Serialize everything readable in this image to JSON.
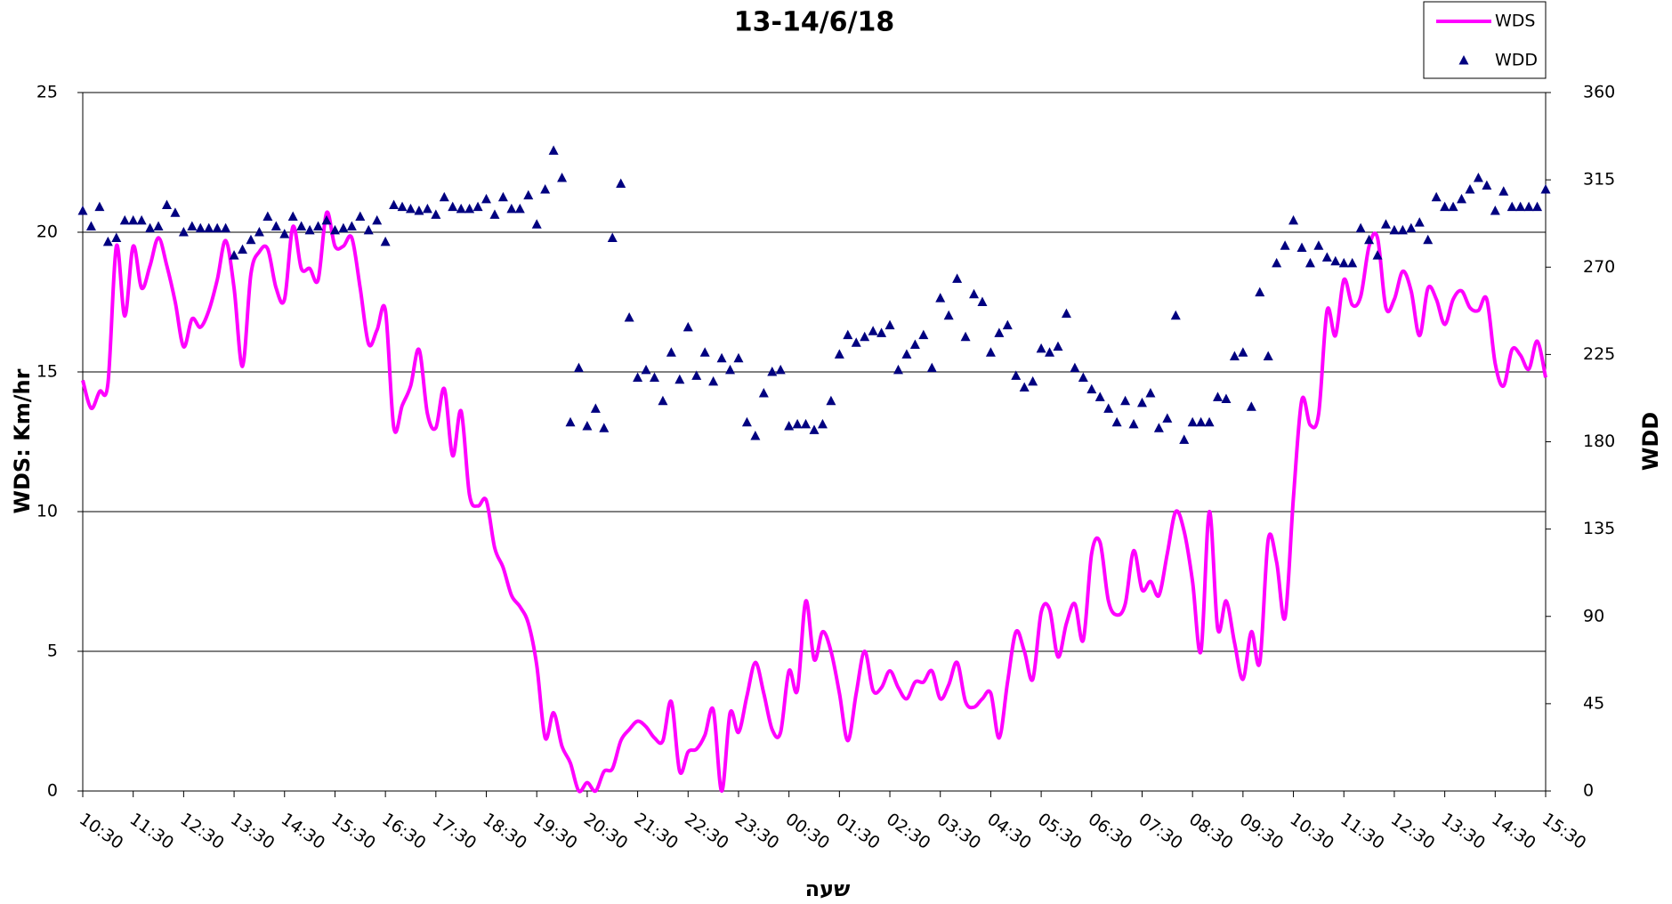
{
  "chart_data": {
    "type": "line",
    "title": "13-14/6/18",
    "x_label": "שעה",
    "y_label": "WDS: Km/hr",
    "y2_label": "WDD",
    "categories": [
      "10:30",
      null,
      null,
      null,
      null,
      null,
      "11:30",
      null,
      null,
      null,
      null,
      null,
      "12:30",
      null,
      null,
      null,
      null,
      null,
      "13:30",
      null,
      null,
      null,
      null,
      null,
      "14:30",
      null,
      null,
      null,
      null,
      null,
      "15:30",
      null,
      null,
      null,
      null,
      null,
      "16:30",
      null,
      null,
      null,
      null,
      null,
      "17:30",
      null,
      null,
      null,
      null,
      null,
      "18:30",
      null,
      null,
      null,
      null,
      null,
      "19:30",
      null,
      null,
      null,
      null,
      null,
      "20:30",
      null,
      null,
      null,
      null,
      null,
      "21:30",
      null,
      null,
      null,
      null,
      null,
      "22:30",
      null,
      null,
      null,
      null,
      null,
      "23:30",
      null,
      null,
      null,
      null,
      null,
      "00:30",
      null,
      null,
      null,
      null,
      null,
      "01:30",
      null,
      null,
      null,
      null,
      null,
      "02:30",
      null,
      null,
      null,
      null,
      null,
      "03:30",
      null,
      null,
      null,
      null,
      null,
      "04:30",
      null,
      null,
      null,
      null,
      null,
      "05:30",
      null,
      null,
      null,
      null,
      null,
      "06:30",
      null,
      null,
      null,
      null,
      null,
      "07:30",
      null,
      null,
      null,
      null,
      null,
      "08:30",
      null,
      null,
      null,
      null,
      null,
      "09:30",
      null,
      null,
      null,
      null,
      null,
      "10:30",
      null,
      null,
      null,
      null,
      null,
      "11:30",
      null,
      null,
      null,
      null,
      null,
      "12:30",
      null,
      null,
      null,
      null,
      null,
      "13:30",
      null,
      null,
      null,
      null,
      null,
      "14:30",
      null,
      null,
      null,
      null,
      null,
      "15:30"
    ],
    "series": [
      {
        "name": "WDS",
        "type": "line",
        "axis": "y",
        "color": "#ff00ff",
        "values": [
          14.7,
          13.7,
          14.3,
          14.6,
          19.5,
          17.0,
          19.5,
          18.0,
          18.8,
          19.8,
          18.8,
          17.5,
          15.9,
          16.9,
          16.6,
          17.2,
          18.3,
          19.7,
          18.0,
          15.2,
          18.5,
          19.3,
          19.4,
          18.0,
          17.6,
          20.2,
          18.7,
          18.7,
          18.3,
          20.7,
          19.5,
          19.5,
          19.8,
          18.0,
          16.0,
          16.5,
          17.2,
          13.0,
          13.8,
          14.5,
          15.8,
          13.5,
          13.0,
          14.4,
          12.0,
          13.6,
          10.6,
          10.2,
          10.4,
          8.7,
          8.0,
          7.0,
          6.6,
          6.0,
          4.5,
          1.9,
          2.8,
          1.6,
          1.0,
          0.0,
          0.3,
          0.0,
          0.7,
          0.8,
          1.8,
          2.2,
          2.5,
          2.3,
          1.9,
          1.8,
          3.2,
          0.7,
          1.4,
          1.5,
          2.0,
          2.9,
          0.0,
          2.8,
          2.1,
          3.4,
          4.6,
          3.5,
          2.2,
          2.1,
          4.3,
          3.6,
          6.8,
          4.7,
          5.7,
          5.0,
          3.5,
          1.8,
          3.5,
          5.0,
          3.6,
          3.7,
          4.3,
          3.7,
          3.3,
          3.9,
          3.9,
          4.3,
          3.3,
          3.8,
          4.6,
          3.2,
          3.0,
          3.3,
          3.5,
          1.9,
          3.9,
          5.7,
          5.0,
          4.0,
          6.4,
          6.5,
          4.8,
          6.0,
          6.7,
          5.4,
          8.5,
          8.9,
          6.8,
          6.3,
          6.7,
          8.6,
          7.2,
          7.5,
          7.0,
          8.5,
          10.0,
          9.3,
          7.5,
          5.0,
          10.0,
          5.8,
          6.8,
          5.3,
          4.0,
          5.7,
          4.6,
          9.0,
          8.2,
          6.2,
          10.5,
          14.0,
          13.1,
          13.5,
          17.2,
          16.3,
          18.3,
          17.4,
          17.7,
          19.5,
          19.8,
          17.3,
          17.6,
          18.6,
          17.9,
          16.3,
          18.0,
          17.6,
          16.7,
          17.6,
          17.9,
          17.3,
          17.2,
          17.6,
          15.3,
          14.5,
          15.8,
          15.6,
          15.1,
          16.1,
          14.8
        ]
      },
      {
        "name": "WDD",
        "type": "scatter",
        "axis": "y2",
        "color": "#000080",
        "values": [
          299,
          291,
          301,
          283,
          285,
          294,
          294,
          294,
          290,
          291,
          302,
          298,
          288,
          291,
          290,
          290,
          290,
          290,
          276,
          279,
          284,
          288,
          296,
          291,
          287,
          296,
          291,
          289,
          291,
          294,
          289,
          290,
          291,
          296,
          289,
          294,
          283,
          302,
          301,
          300,
          299,
          300,
          297,
          306,
          301,
          300,
          300,
          301,
          305,
          297,
          306,
          300,
          300,
          307,
          292,
          310,
          330,
          316,
          190,
          218,
          188,
          197,
          187,
          285,
          313,
          244,
          213,
          217,
          213,
          201,
          226,
          212,
          239,
          214,
          226,
          211,
          223,
          217,
          223,
          190,
          183,
          205,
          216,
          217,
          188,
          189,
          189,
          186,
          189,
          201,
          225,
          235,
          231,
          234,
          237,
          236,
          240,
          217,
          225,
          230,
          235,
          218,
          254,
          245,
          264,
          234,
          256,
          252,
          226,
          236,
          240,
          214,
          208,
          211,
          228,
          226,
          229,
          246,
          218,
          213,
          207,
          203,
          197,
          190,
          201,
          189,
          200,
          205,
          187,
          192,
          245,
          181,
          190,
          190,
          190,
          203,
          202,
          224,
          226,
          198,
          257,
          224,
          272,
          281,
          294,
          280,
          272,
          281,
          275,
          273,
          272,
          272,
          290,
          284,
          276,
          292,
          289,
          289,
          290,
          293,
          284,
          306,
          301,
          301,
          305,
          310,
          316,
          312,
          299,
          309,
          301,
          301,
          301,
          301,
          310
        ]
      }
    ],
    "ylim": [
      0,
      25
    ],
    "yticks": [
      0,
      5,
      10,
      15,
      20,
      25
    ],
    "y2lim": [
      0,
      360
    ],
    "y2ticks": [
      0,
      45,
      90,
      135,
      180,
      225,
      270,
      315,
      360
    ],
    "grid": true,
    "legend": "top-right"
  }
}
